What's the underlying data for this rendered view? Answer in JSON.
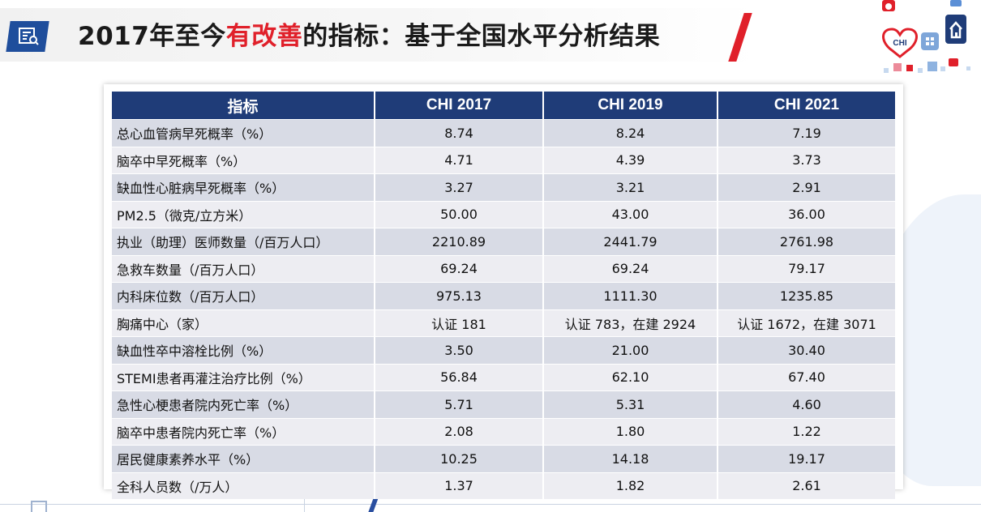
{
  "slide": {
    "title_pre": "2017年至今",
    "title_highlight": "有改善",
    "title_post": "的指标：基于全国水平分析结果",
    "icon": "report-search-icon",
    "logo_text": "CHI",
    "accent_color": "#e0202a",
    "header_color": "#1f3c78"
  },
  "table": {
    "headers": [
      "指标",
      "CHI 2017",
      "CHI 2019",
      "CHI 2021"
    ],
    "rows": [
      {
        "name": "总心血管病早死概率（%）",
        "v2017": "8.74",
        "v2019": "8.24",
        "v2021": "7.19"
      },
      {
        "name": "脑卒中早死概率（%）",
        "v2017": "4.71",
        "v2019": "4.39",
        "v2021": "3.73"
      },
      {
        "name": "缺血性心脏病早死概率（%）",
        "v2017": "3.27",
        "v2019": "3.21",
        "v2021": "2.91"
      },
      {
        "name": "PM2.5（微克/立方米）",
        "v2017": "50.00",
        "v2019": "43.00",
        "v2021": "36.00"
      },
      {
        "name": "执业（助理）医师数量（/百万人口）",
        "v2017": "2210.89",
        "v2019": "2441.79",
        "v2021": "2761.98"
      },
      {
        "name": "急救车数量（/百万人口）",
        "v2017": "69.24",
        "v2019": "69.24",
        "v2021": "79.17"
      },
      {
        "name": "内科床位数（/百万人口）",
        "v2017": "975.13",
        "v2019": "1111.30",
        "v2021": "1235.85"
      },
      {
        "name": "胸痛中心（家）",
        "v2017": "认证 181",
        "v2019": "认证 783，在建 2924",
        "v2021": "认证 1672，在建 3071"
      },
      {
        "name": "缺血性卒中溶栓比例（%）",
        "v2017": "3.50",
        "v2019": "21.00",
        "v2021": "30.40"
      },
      {
        "name": "STEMI患者再灌注治疗比例（%）",
        "v2017": "56.84",
        "v2019": "62.10",
        "v2021": "67.40"
      },
      {
        "name": "急性心梗患者院内死亡率（%）",
        "v2017": "5.71",
        "v2019": "5.31",
        "v2021": "4.60"
      },
      {
        "name": "脑卒中患者院内死亡率（%）",
        "v2017": "2.08",
        "v2019": "1.80",
        "v2021": "1.22"
      },
      {
        "name": "居民健康素养水平（%）",
        "v2017": "10.25",
        "v2019": "14.18",
        "v2021": "19.17"
      },
      {
        "name": "全科人员数（/万人）",
        "v2017": "1.37",
        "v2019": "1.82",
        "v2021": "2.61"
      }
    ]
  }
}
